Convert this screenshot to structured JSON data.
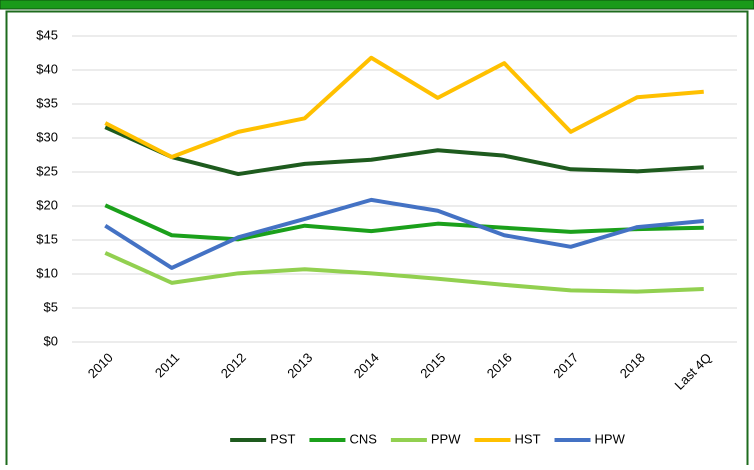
{
  "chart_data": {
    "type": "line",
    "categories": [
      "2010",
      "2011",
      "2012",
      "2013",
      "2014",
      "2015",
      "2016",
      "2017",
      "2018",
      "Last 4Q"
    ],
    "series": [
      {
        "name": "PST",
        "color": "#1e5b1e",
        "values": [
          31.6,
          27.2,
          24.7,
          26.2,
          26.8,
          28.2,
          27.4,
          25.4,
          25.1,
          25.7
        ]
      },
      {
        "name": "CNS",
        "color": "#1ba01b",
        "values": [
          20.1,
          15.7,
          15.1,
          17.1,
          16.3,
          17.4,
          16.8,
          16.2,
          16.6,
          16.8
        ]
      },
      {
        "name": "PPW",
        "color": "#92d050",
        "values": [
          13.1,
          8.7,
          10.1,
          10.7,
          10.1,
          9.3,
          8.4,
          7.6,
          7.4,
          7.8
        ]
      },
      {
        "name": "HST",
        "color": "#ffc000",
        "values": [
          32.2,
          27.2,
          30.9,
          32.9,
          41.8,
          35.9,
          41.0,
          30.9,
          36.0,
          36.8
        ]
      },
      {
        "name": "HPW",
        "color": "#4472c4",
        "values": [
          17.1,
          10.9,
          15.4,
          18.1,
          20.9,
          19.3,
          15.7,
          14.0,
          16.9,
          17.8
        ]
      }
    ],
    "ylim": [
      0,
      45
    ],
    "yticks": [
      {
        "value": 0,
        "label": "$0"
      },
      {
        "value": 5,
        "label": "$5"
      },
      {
        "value": 10,
        "label": "$10"
      },
      {
        "value": 15,
        "label": "$15"
      },
      {
        "value": 20,
        "label": "$20"
      },
      {
        "value": 25,
        "label": "$25"
      },
      {
        "value": 30,
        "label": "$30"
      },
      {
        "value": 35,
        "label": "$35"
      },
      {
        "value": 40,
        "label": "$40"
      },
      {
        "value": 45,
        "label": "$45"
      }
    ],
    "grid": true,
    "legend": "bottom"
  }
}
